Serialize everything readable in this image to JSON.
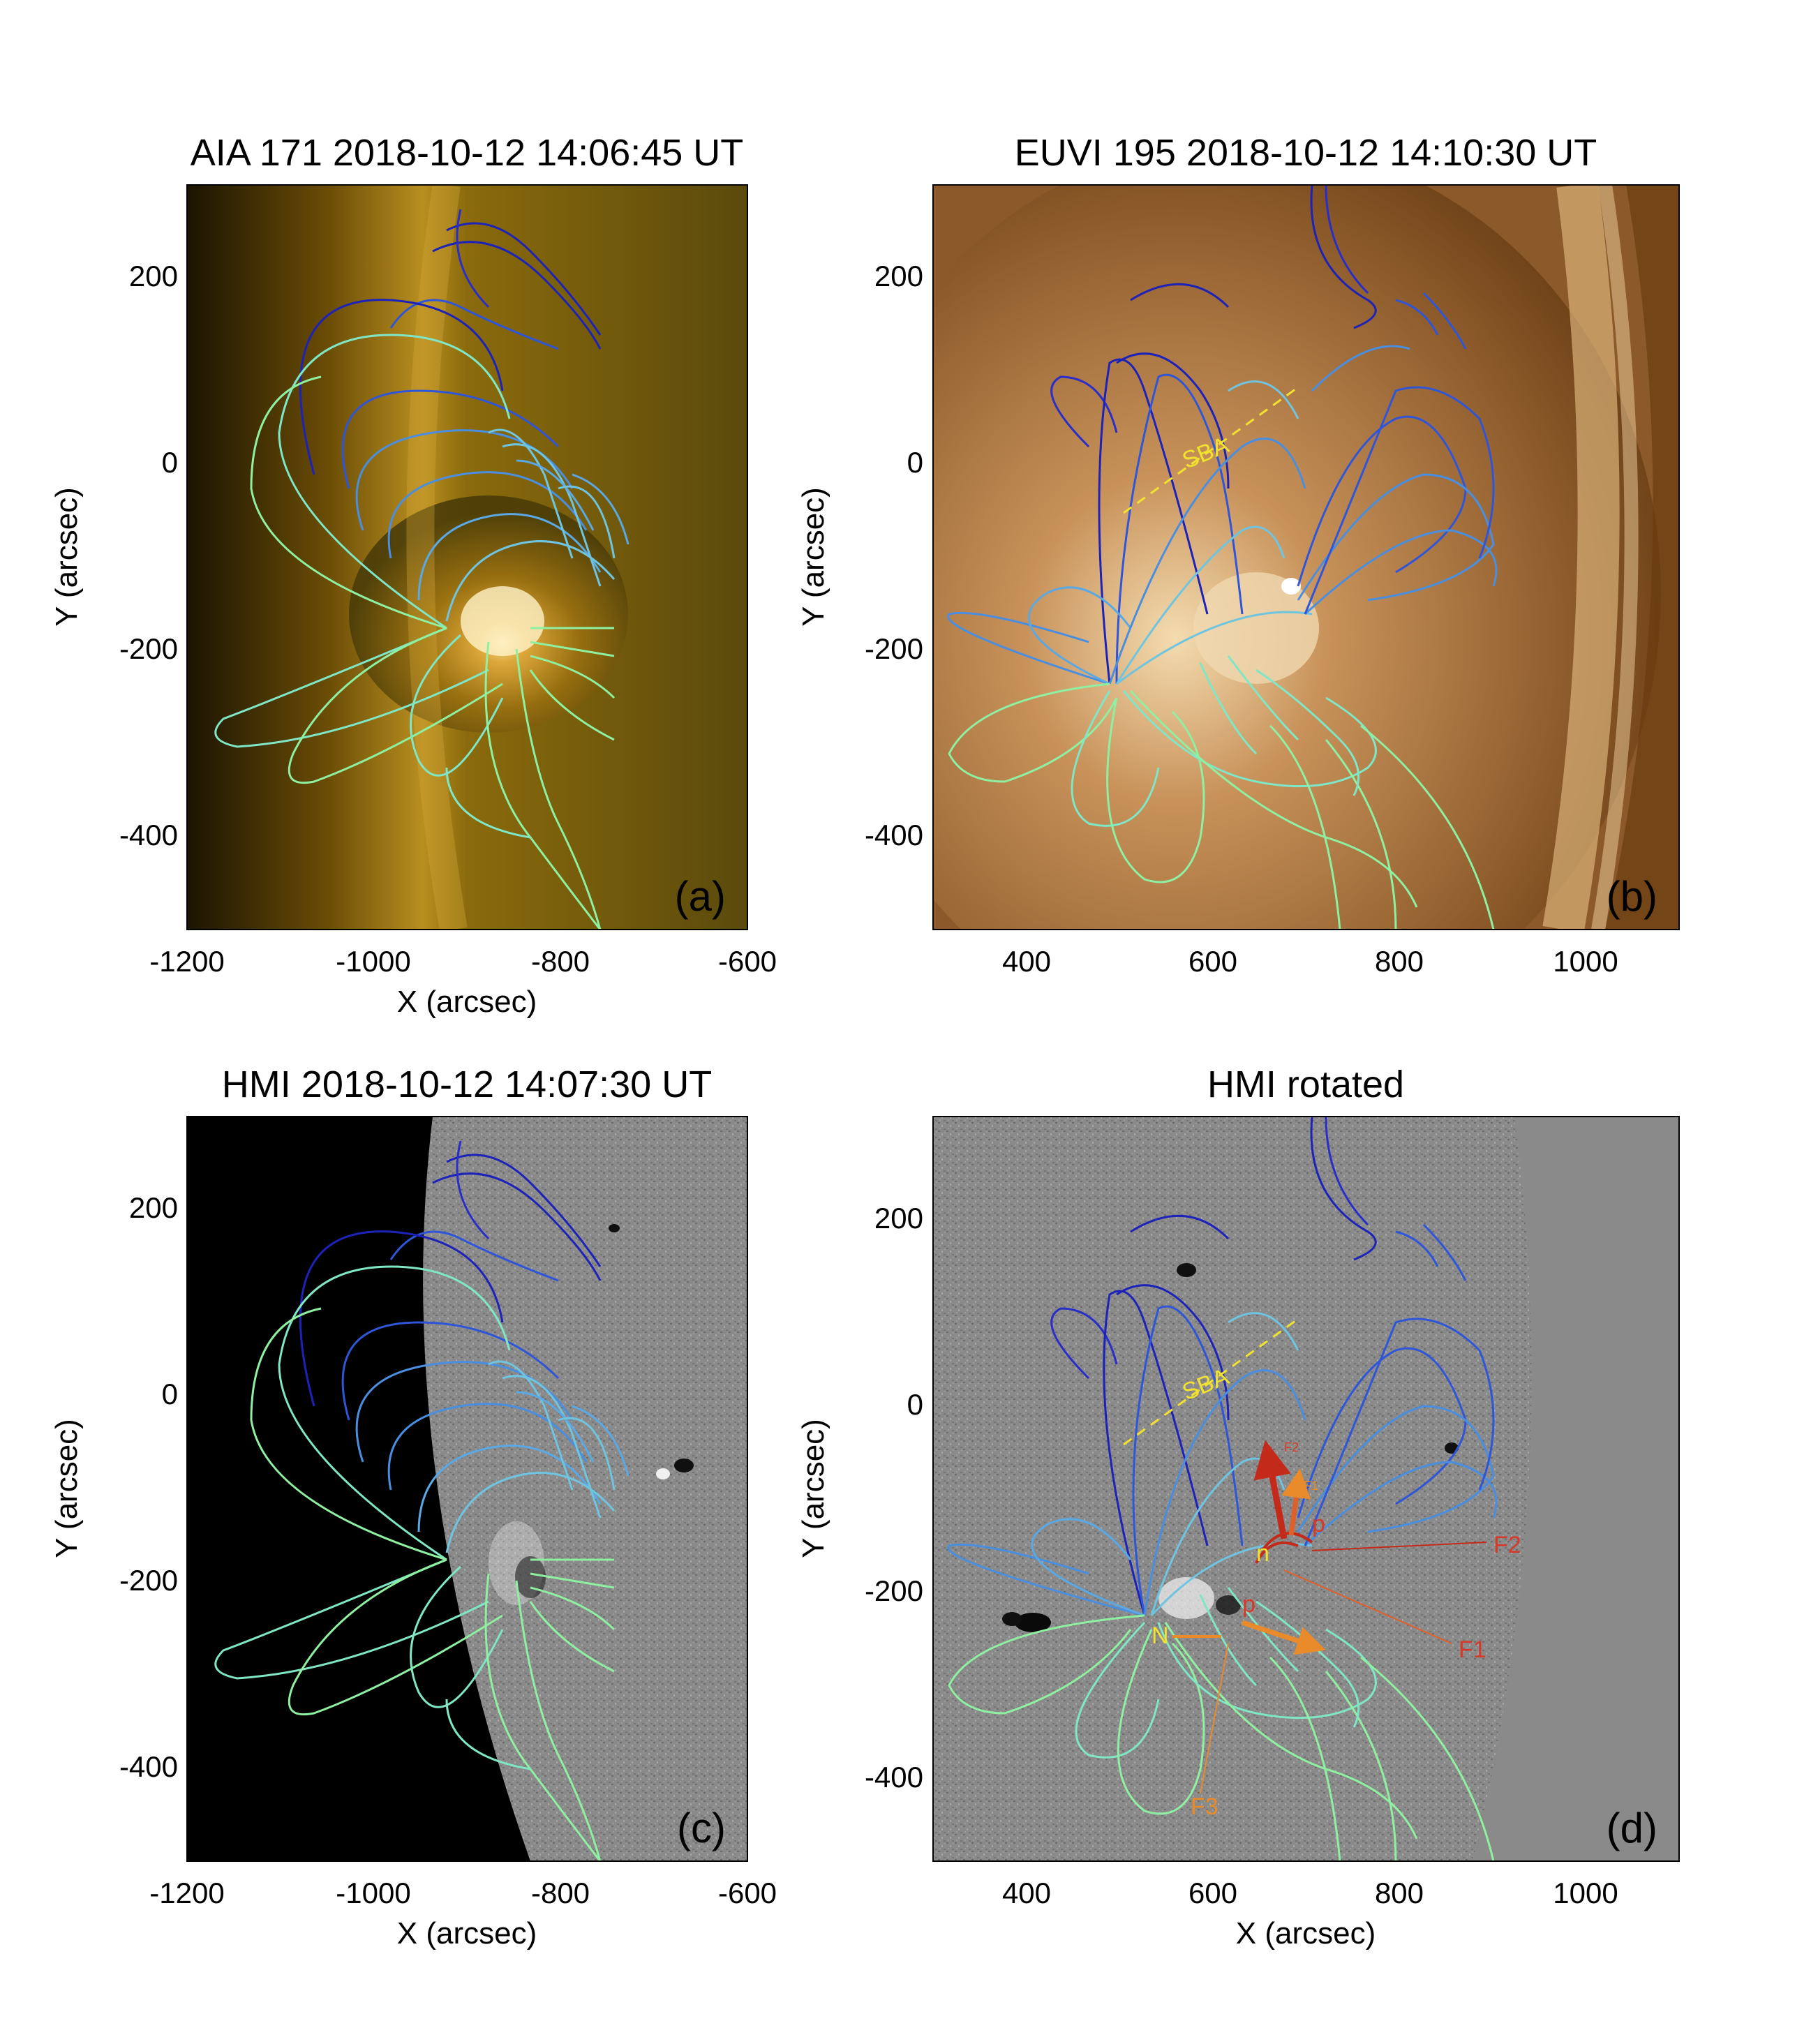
{
  "panels": [
    {
      "id": "a",
      "title": "AIA 171 2018-10-12 14:06:45 UT",
      "letter": "(a)",
      "xlabel": "X (arcsec)",
      "ylabel": "Y (arcsec)",
      "xticks": [
        "-1200",
        "-1000",
        "-800",
        "-600"
      ],
      "yticks": [
        "200",
        "0",
        "-200",
        "-400"
      ]
    },
    {
      "id": "b",
      "title": "EUVI 195 2018-10-12 14:10:30 UT",
      "letter": "(b)",
      "xlabel": "",
      "ylabel": "Y (arcsec)",
      "xticks": [
        "400",
        "600",
        "800",
        "1000"
      ],
      "yticks": [
        "200",
        "0",
        "-200",
        "-400"
      ]
    },
    {
      "id": "c",
      "title": "HMI 2018-10-12 14:07:30 UT",
      "letter": "(c)",
      "xlabel": "X (arcsec)",
      "ylabel": "Y (arcsec)",
      "xticks": [
        "-1200",
        "-1000",
        "-800",
        "-600"
      ],
      "yticks": [
        "200",
        "0",
        "-200",
        "-400"
      ]
    },
    {
      "id": "d",
      "title": "HMI rotated",
      "letter": "(d)",
      "xlabel": "X (arcsec)",
      "ylabel": "Y (arcsec)",
      "xticks": [
        "400",
        "600",
        "800",
        "1000"
      ],
      "yticks": [
        "200",
        "0",
        "-200",
        "-400"
      ]
    }
  ],
  "annotations": {
    "sba": "SBA",
    "f1": "F1",
    "f2": "F2",
    "f3": "F3",
    "n_label": "N",
    "n_small": "n",
    "p_label": "p",
    "f2_small": "F2",
    "f1_small": "F1"
  },
  "colors": {
    "field_lines": [
      "#1d22b8",
      "#2f55d8",
      "#4a8ee0",
      "#6fc4e0",
      "#7fe6c6",
      "#8ef0a0"
    ],
    "sba_line": "#f2e230",
    "arrow_red": "#c42a1a",
    "arrow_orange": "#e98a2b"
  }
}
